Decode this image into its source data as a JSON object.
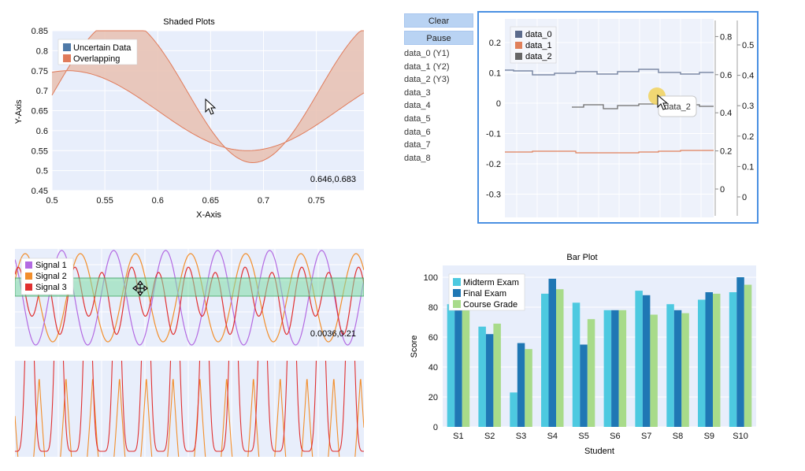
{
  "shaded": {
    "title": "Shaded Plots",
    "xlabel": "X-Axis",
    "ylabel": "Y-Axis",
    "x_ticks": [
      "0.5",
      "0.55",
      "0.6",
      "0.65",
      "0.7",
      "0.75"
    ],
    "y_ticks": [
      "0.45",
      "0.5",
      "0.55",
      "0.6",
      "0.65",
      "0.7",
      "0.75",
      "0.8",
      "0.85"
    ],
    "legend": [
      "Uncertain Data",
      "Overlapping"
    ],
    "readout": "0.646,0.683",
    "colors": {
      "uncertain": "#4e79a7",
      "overlap": "#e6b8a8",
      "line": "#e07b5a",
      "bg": "#e8eefb"
    }
  },
  "signals": {
    "legend": [
      "Signal 1",
      "Signal 2",
      "Signal 3"
    ],
    "readout": "0.0036,0.21",
    "colors": {
      "s1": "#b36ae2",
      "s2": "#f28e2b",
      "s3": "#e03030",
      "band": "#8fe0b0"
    }
  },
  "realtime": {
    "buttons": {
      "clear": "Clear",
      "pause": "Pause"
    },
    "series": [
      "data_0 (Y1)",
      "data_1 (Y2)",
      "data_2 (Y3)",
      "data_3",
      "data_4",
      "data_5",
      "data_6",
      "data_7",
      "data_8"
    ],
    "legend": [
      "data_0",
      "data_1",
      "data_2"
    ],
    "left_ticks": [
      "0.2",
      "0.1",
      "0",
      "-0.1",
      "-0.2",
      "-0.3"
    ],
    "right_ticks_a": [
      "0.8",
      "0.6",
      "0.4",
      "0.2",
      "0"
    ],
    "right_ticks_b": [
      "0.5",
      "0.4",
      "0.3",
      "0.2",
      "0.1",
      "0"
    ],
    "tooltip": "data_2",
    "colors": {
      "d0": "#5b6b8c",
      "d1": "#e0805a",
      "d2": "#666666"
    }
  },
  "chart_data": [
    {
      "type": "bar",
      "title": "Bar Plot",
      "xlabel": "Student",
      "ylabel": "Score",
      "ylim": [
        0,
        100
      ],
      "y_ticks": [
        "0",
        "20",
        "40",
        "60",
        "80",
        "100"
      ],
      "categories": [
        "S1",
        "S2",
        "S3",
        "S4",
        "S5",
        "S6",
        "S7",
        "S8",
        "S9",
        "S10"
      ],
      "series": [
        {
          "name": "Midterm Exam",
          "color": "#4dc9e0",
          "values": [
            82,
            67,
            23,
            89,
            83,
            78,
            91,
            82,
            85,
            90
          ]
        },
        {
          "name": "Final Exam",
          "color": "#1f77b4",
          "values": [
            80,
            62,
            56,
            99,
            55,
            78,
            88,
            78,
            90,
            100
          ]
        },
        {
          "name": "Course Grade",
          "color": "#a8db8a",
          "values": [
            79,
            69,
            52,
            92,
            72,
            78,
            75,
            76,
            89,
            95
          ]
        }
      ]
    }
  ]
}
